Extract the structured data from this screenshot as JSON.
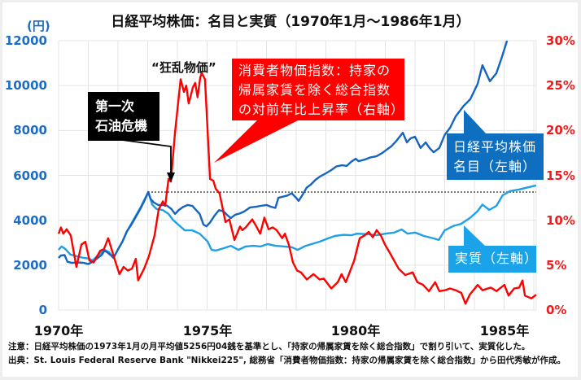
{
  "title": "日経平均株価：名目と実質（1970年1月～1986年1月）",
  "left_axis": {
    "unit": "(円)",
    "ticks": [
      "12000",
      "10000",
      "8000",
      "6000",
      "4000",
      "2000",
      "0"
    ]
  },
  "right_axis": {
    "ticks": [
      "30%",
      "25%",
      "20%",
      "15%",
      "10%",
      "5%",
      "0%"
    ]
  },
  "x_axis": {
    "ticks": [
      "1970年",
      "1975年",
      "1980年",
      "1985年"
    ]
  },
  "annotations": {
    "kyoran": "“狂乱物価”",
    "oil_crisis": {
      "line1": "第一次",
      "line2": "石油危機"
    },
    "cpi_label": {
      "line1": "消費者物価指数：持家の",
      "line2": "帰属家賃を除く総合指数",
      "line3": "の対前年比上昇率（右軸）"
    },
    "nominal_label": {
      "line1": "日経平均株価",
      "line2": "名目（左軸）"
    },
    "real_label": "実質（左軸）"
  },
  "notes": {
    "note": "注意：日経平均株価の1973年1月の月平均値5256円04銭を基準とし、「持家の帰属家賃を除く総合指数」で割り引いて、実質化した。",
    "source": "出典：St. Louis Federal Reserve Bank \"Nikkei225\", 総務省「消費者物価指数：持家の帰属家賃を除く総合指数」から田代秀敏が作成。"
  },
  "colors": {
    "nominal": "#1565c0",
    "real": "#1ea0e6",
    "cpi": "#ff0000",
    "left_axis_text": "#1f6dc2",
    "right_axis_text": "#f01c1c",
    "nominal_box": "#0e6ebf",
    "real_box": "#1aa3e8",
    "cpi_box": "#ff0000",
    "oil_box": "#000000",
    "grid": "#e4e4e4"
  },
  "chart_data": {
    "type": "line",
    "title": "日経平均株価：名目と実質（1970年1月～1986年1月）",
    "xlabel": "",
    "ylabel_left": "(円)",
    "ylabel_right": "%",
    "x_range": [
      1970.0,
      1986.08
    ],
    "ylim_left": [
      0,
      12000
    ],
    "ylim_right": [
      0,
      30
    ],
    "grid": true,
    "x_ticks": [
      1970,
      1975,
      1980,
      1985
    ],
    "reference_line": {
      "axis": "left",
      "value": 5256,
      "from": 1973.02,
      "to": 1986.08,
      "style": "dotted",
      "label": "1973年1月 5256円04銭"
    },
    "series": [
      {
        "name": "日経平均株価 名目（左軸）",
        "axis": "left",
        "color": "#1565c0",
        "points": [
          [
            1970.0,
            2320
          ],
          [
            1970.08,
            2430
          ],
          [
            1970.2,
            2450
          ],
          [
            1970.3,
            2150
          ],
          [
            1970.45,
            2100
          ],
          [
            1970.65,
            2120
          ],
          [
            1970.85,
            2100
          ],
          [
            1971.0,
            2050
          ],
          [
            1971.15,
            2150
          ],
          [
            1971.3,
            2300
          ],
          [
            1971.45,
            2450
          ],
          [
            1971.55,
            2650
          ],
          [
            1971.65,
            2560
          ],
          [
            1971.75,
            2450
          ],
          [
            1971.85,
            2320
          ],
          [
            1972.0,
            2700
          ],
          [
            1972.15,
            3050
          ],
          [
            1972.3,
            3500
          ],
          [
            1972.45,
            3800
          ],
          [
            1972.6,
            4150
          ],
          [
            1972.75,
            4500
          ],
          [
            1972.9,
            4900
          ],
          [
            1973.02,
            5256
          ],
          [
            1973.1,
            4950
          ],
          [
            1973.2,
            4800
          ],
          [
            1973.35,
            4680
          ],
          [
            1973.5,
            4680
          ],
          [
            1973.65,
            4650
          ],
          [
            1973.8,
            4500
          ],
          [
            1973.92,
            4280
          ],
          [
            1974.05,
            4460
          ],
          [
            1974.2,
            4600
          ],
          [
            1974.35,
            4680
          ],
          [
            1974.5,
            4640
          ],
          [
            1974.6,
            4500
          ],
          [
            1974.75,
            4280
          ],
          [
            1974.88,
            3800
          ],
          [
            1974.98,
            3730
          ],
          [
            1975.1,
            3900
          ],
          [
            1975.25,
            4200
          ],
          [
            1975.4,
            4450
          ],
          [
            1975.55,
            4400
          ],
          [
            1975.7,
            4200
          ],
          [
            1975.8,
            4100
          ],
          [
            1975.95,
            4250
          ],
          [
            1976.1,
            4300
          ],
          [
            1976.25,
            4390
          ],
          [
            1976.45,
            4570
          ],
          [
            1976.65,
            4600
          ],
          [
            1976.8,
            4640
          ],
          [
            1977.0,
            4680
          ],
          [
            1977.15,
            4600
          ],
          [
            1977.3,
            4550
          ],
          [
            1977.4,
            5000
          ],
          [
            1977.55,
            5050
          ],
          [
            1977.7,
            5100
          ],
          [
            1977.85,
            5200
          ],
          [
            1978.0,
            5000
          ],
          [
            1978.08,
            4860
          ],
          [
            1978.2,
            5100
          ],
          [
            1978.35,
            5450
          ],
          [
            1978.5,
            5600
          ],
          [
            1978.65,
            5800
          ],
          [
            1978.8,
            5950
          ],
          [
            1979.0,
            6090
          ],
          [
            1979.2,
            6250
          ],
          [
            1979.35,
            6400
          ],
          [
            1979.55,
            6450
          ],
          [
            1979.7,
            6420
          ],
          [
            1979.85,
            6600
          ],
          [
            1980.0,
            6740
          ],
          [
            1980.1,
            6630
          ],
          [
            1980.3,
            6700
          ],
          [
            1980.5,
            6800
          ],
          [
            1980.7,
            6850
          ],
          [
            1980.9,
            7000
          ],
          [
            1981.0,
            7100
          ],
          [
            1981.2,
            7290
          ],
          [
            1981.35,
            7500
          ],
          [
            1981.59,
            7900
          ],
          [
            1981.73,
            7470
          ],
          [
            1981.85,
            7650
          ],
          [
            1982.0,
            7720
          ],
          [
            1982.19,
            7220
          ],
          [
            1982.36,
            7470
          ],
          [
            1982.5,
            7200
          ],
          [
            1982.63,
            7030
          ],
          [
            1982.82,
            7220
          ],
          [
            1983.0,
            7800
          ],
          [
            1983.18,
            8120
          ],
          [
            1983.37,
            8630
          ],
          [
            1983.64,
            9100
          ],
          [
            1983.86,
            9390
          ],
          [
            1984.11,
            10080
          ],
          [
            1984.27,
            10910
          ],
          [
            1984.52,
            10190
          ],
          [
            1984.74,
            10550
          ],
          [
            1984.93,
            11280
          ],
          [
            1985.1,
            12000
          ]
        ]
      },
      {
        "name": "実質（左軸）",
        "axis": "left",
        "color": "#1ea0e6",
        "points": [
          [
            1970.0,
            2680
          ],
          [
            1970.1,
            2830
          ],
          [
            1970.2,
            2750
          ],
          [
            1970.4,
            2470
          ],
          [
            1970.6,
            2400
          ],
          [
            1970.85,
            2320
          ],
          [
            1971.0,
            2300
          ],
          [
            1971.15,
            2210
          ],
          [
            1971.3,
            2400
          ],
          [
            1971.45,
            2575
          ],
          [
            1971.55,
            2680
          ],
          [
            1971.7,
            2575
          ],
          [
            1971.85,
            2320
          ],
          [
            1972.0,
            2700
          ],
          [
            1972.15,
            3050
          ],
          [
            1972.3,
            3500
          ],
          [
            1972.45,
            3850
          ],
          [
            1972.6,
            4200
          ],
          [
            1972.75,
            4550
          ],
          [
            1972.9,
            4950
          ],
          [
            1973.02,
            5256
          ],
          [
            1973.15,
            4700
          ],
          [
            1973.3,
            4500
          ],
          [
            1973.5,
            4460
          ],
          [
            1973.7,
            4280
          ],
          [
            1973.85,
            4020
          ],
          [
            1974.0,
            3840
          ],
          [
            1974.25,
            3550
          ],
          [
            1974.5,
            3550
          ],
          [
            1974.75,
            3400
          ],
          [
            1975.02,
            3050
          ],
          [
            1975.15,
            2680
          ],
          [
            1975.3,
            2650
          ],
          [
            1975.55,
            2750
          ],
          [
            1975.8,
            2860
          ],
          [
            1976.05,
            2680
          ],
          [
            1976.3,
            2830
          ],
          [
            1976.55,
            2860
          ],
          [
            1976.8,
            2830
          ],
          [
            1977.05,
            2940
          ],
          [
            1977.3,
            2860
          ],
          [
            1977.6,
            2830
          ],
          [
            1977.85,
            2800
          ],
          [
            1978.05,
            2680
          ],
          [
            1978.3,
            2850
          ],
          [
            1978.55,
            2950
          ],
          [
            1978.8,
            3050
          ],
          [
            1979.05,
            3180
          ],
          [
            1979.3,
            3300
          ],
          [
            1979.6,
            3350
          ],
          [
            1979.85,
            3330
          ],
          [
            1980.05,
            3400
          ],
          [
            1980.4,
            3380
          ],
          [
            1980.7,
            3330
          ],
          [
            1981.0,
            3400
          ],
          [
            1981.3,
            3450
          ],
          [
            1981.55,
            3590
          ],
          [
            1981.75,
            3400
          ],
          [
            1982.0,
            3450
          ],
          [
            1982.3,
            3300
          ],
          [
            1982.63,
            3190
          ],
          [
            1982.8,
            3120
          ],
          [
            1983.0,
            3550
          ],
          [
            1983.3,
            3750
          ],
          [
            1983.55,
            3840
          ],
          [
            1983.85,
            4100
          ],
          [
            1984.1,
            4390
          ],
          [
            1984.27,
            4700
          ],
          [
            1984.5,
            4460
          ],
          [
            1984.74,
            4640
          ],
          [
            1984.95,
            5110
          ],
          [
            1985.2,
            5300
          ],
          [
            1985.5,
            5370
          ],
          [
            1985.75,
            5450
          ],
          [
            1986.08,
            5550
          ]
        ]
      },
      {
        "name": "消費者物価指数：持家の帰属家賃を除く総合指数の対前年比上昇率（右軸）",
        "axis": "right",
        "color": "#ff0000",
        "points": [
          [
            1970.0,
            8.5
          ],
          [
            1970.08,
            9.2
          ],
          [
            1970.16,
            8.5
          ],
          [
            1970.27,
            9.0
          ],
          [
            1970.41,
            8.3
          ],
          [
            1970.6,
            4.8
          ],
          [
            1970.77,
            7.3
          ],
          [
            1970.9,
            7.6
          ],
          [
            1971.04,
            5.5
          ],
          [
            1971.18,
            5.3
          ],
          [
            1971.4,
            6.6
          ],
          [
            1971.53,
            6.8
          ],
          [
            1971.67,
            8.0
          ],
          [
            1971.92,
            5.3
          ],
          [
            1972.05,
            4.0
          ],
          [
            1972.19,
            4.8
          ],
          [
            1972.33,
            4.4
          ],
          [
            1972.47,
            4.6
          ],
          [
            1972.6,
            5.7
          ],
          [
            1972.68,
            3.3
          ],
          [
            1972.88,
            4.6
          ],
          [
            1973.04,
            6.0
          ],
          [
            1973.23,
            8.3
          ],
          [
            1973.37,
            11.2
          ],
          [
            1973.51,
            12.1
          ],
          [
            1973.59,
            11.6
          ],
          [
            1973.7,
            14.6
          ],
          [
            1973.78,
            14.3
          ],
          [
            1973.92,
            19.8
          ],
          [
            1974.11,
            25.7
          ],
          [
            1974.22,
            24.3
          ],
          [
            1974.3,
            25.0
          ],
          [
            1974.38,
            23.0
          ],
          [
            1974.52,
            24.8
          ],
          [
            1974.6,
            25.3
          ],
          [
            1974.68,
            23.7
          ],
          [
            1974.77,
            25.9
          ],
          [
            1974.82,
            26.4
          ],
          [
            1974.93,
            25.7
          ],
          [
            1975.1,
            14.6
          ],
          [
            1975.21,
            14.4
          ],
          [
            1975.29,
            13.5
          ],
          [
            1975.42,
            13.0
          ],
          [
            1975.62,
            9.8
          ],
          [
            1975.75,
            10.1
          ],
          [
            1975.92,
            7.8
          ],
          [
            1976.11,
            9.3
          ],
          [
            1976.19,
            8.9
          ],
          [
            1976.3,
            9.2
          ],
          [
            1976.52,
            10.1
          ],
          [
            1976.66,
            9.3
          ],
          [
            1976.79,
            8.5
          ],
          [
            1976.93,
            10.3
          ],
          [
            1977.07,
            9.0
          ],
          [
            1977.21,
            9.2
          ],
          [
            1977.34,
            8.9
          ],
          [
            1977.53,
            8.0
          ],
          [
            1977.62,
            8.5
          ],
          [
            1977.75,
            7.3
          ],
          [
            1977.89,
            5.3
          ],
          [
            1978.03,
            4.4
          ],
          [
            1978.16,
            4.2
          ],
          [
            1978.36,
            3.4
          ],
          [
            1978.58,
            4.0
          ],
          [
            1978.79,
            3.4
          ],
          [
            1978.93,
            3.5
          ],
          [
            1979.18,
            2.4
          ],
          [
            1979.4,
            3.1
          ],
          [
            1979.53,
            4.0
          ],
          [
            1979.67,
            3.1
          ],
          [
            1979.95,
            5.5
          ],
          [
            1980.14,
            8.0
          ],
          [
            1980.3,
            8.3
          ],
          [
            1980.44,
            8.7
          ],
          [
            1980.58,
            8.1
          ],
          [
            1980.71,
            8.9
          ],
          [
            1980.85,
            8.3
          ],
          [
            1980.99,
            7.3
          ],
          [
            1981.18,
            6.2
          ],
          [
            1981.45,
            4.6
          ],
          [
            1981.67,
            3.9
          ],
          [
            1981.92,
            4.2
          ],
          [
            1982.08,
            3.1
          ],
          [
            1982.27,
            2.8
          ],
          [
            1982.47,
            2.1
          ],
          [
            1982.68,
            3.1
          ],
          [
            1982.82,
            2.1
          ],
          [
            1983.01,
            2.2
          ],
          [
            1983.18,
            2.4
          ],
          [
            1983.37,
            2.2
          ],
          [
            1983.56,
            1.9
          ],
          [
            1983.7,
            0.7
          ],
          [
            1983.84,
            1.7
          ],
          [
            1984.11,
            2.8
          ],
          [
            1984.27,
            2.2
          ],
          [
            1984.55,
            2.5
          ],
          [
            1984.74,
            2.1
          ],
          [
            1985.01,
            2.8
          ],
          [
            1985.15,
            1.6
          ],
          [
            1985.34,
            2.4
          ],
          [
            1985.51,
            2.5
          ],
          [
            1985.62,
            3.3
          ],
          [
            1985.7,
            1.6
          ],
          [
            1985.92,
            1.3
          ],
          [
            1986.08,
            1.7
          ]
        ]
      }
    ],
    "annotations": [
      "“狂乱物価”",
      "第一次 石油危機",
      "消費者物価指数：持家の帰属家賃を除く総合指数の対前年比上昇率（右軸）",
      "日経平均株価 名目（左軸）",
      "実質（左軸）"
    ]
  }
}
